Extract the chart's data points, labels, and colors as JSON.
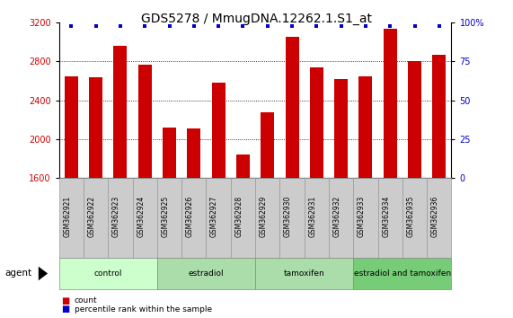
{
  "title": "GDS5278 / MmugDNA.12262.1.S1_at",
  "samples": [
    "GSM362921",
    "GSM362922",
    "GSM362923",
    "GSM362924",
    "GSM362925",
    "GSM362926",
    "GSM362927",
    "GSM362928",
    "GSM362929",
    "GSM362930",
    "GSM362931",
    "GSM362932",
    "GSM362933",
    "GSM362934",
    "GSM362935",
    "GSM362936"
  ],
  "counts": [
    2640,
    2635,
    2960,
    2760,
    2120,
    2110,
    2580,
    1840,
    2280,
    3050,
    2740,
    2620,
    2640,
    3130,
    2800,
    2870
  ],
  "bar_color": "#cc0000",
  "dot_color": "#0000cc",
  "ymin": 1600,
  "ymax": 3200,
  "yticks": [
    1600,
    2000,
    2400,
    2800,
    3200
  ],
  "yright_ticks": [
    0,
    25,
    50,
    75,
    100
  ],
  "group_info": [
    {
      "label": "control",
      "start": 0,
      "end": 3,
      "color": "#ccffcc"
    },
    {
      "label": "estradiol",
      "start": 4,
      "end": 7,
      "color": "#aaddaa"
    },
    {
      "label": "tamoxifen",
      "start": 8,
      "end": 11,
      "color": "#aaddaa"
    },
    {
      "label": "estradiol and tamoxifen",
      "start": 12,
      "end": 15,
      "color": "#77cc77"
    }
  ],
  "title_fontsize": 10,
  "tick_fontsize": 7,
  "label_color_left": "#cc0000",
  "label_color_right": "#0000cc",
  "background_color": "#ffffff",
  "agent_label": "agent",
  "legend_count_color": "#cc0000",
  "legend_rank_color": "#0000cc",
  "sample_box_color": "#cccccc",
  "plot_bg_color": "#ffffff"
}
